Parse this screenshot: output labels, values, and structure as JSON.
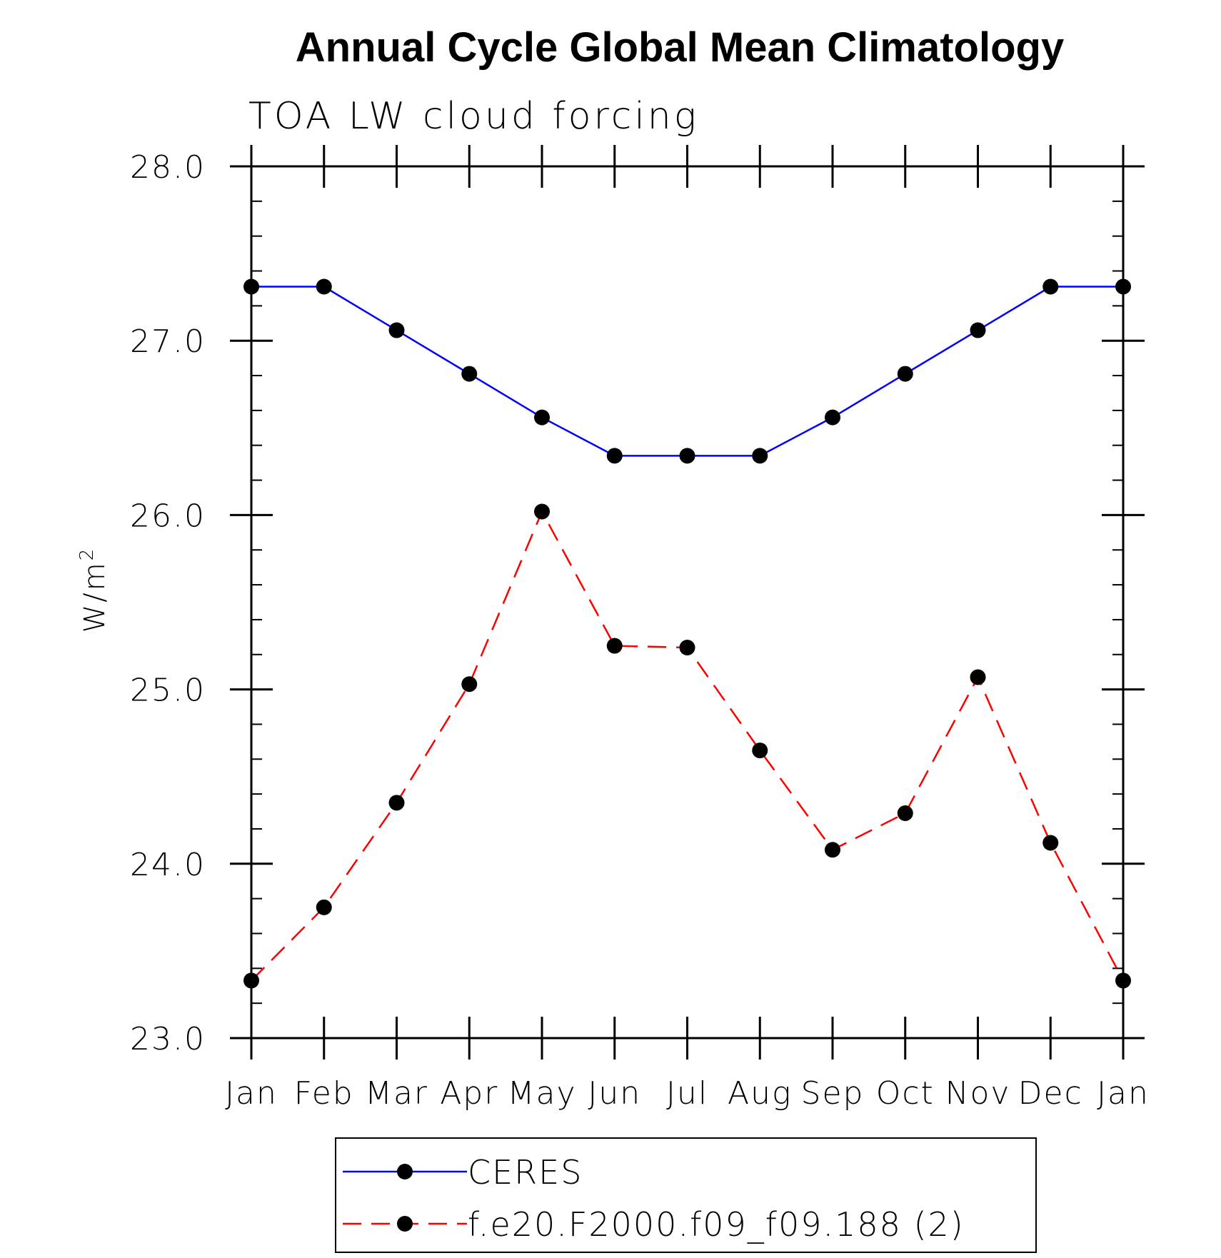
{
  "chart_data": {
    "type": "line",
    "title": "Annual Cycle Global Mean Climatology",
    "subtitle": "TOA LW cloud forcing",
    "ylabel": "W/m",
    "ylabel_superscript": "2",
    "ylim": [
      23.0,
      28.0
    ],
    "y_major_ticks": [
      23.0,
      24.0,
      25.0,
      26.0,
      27.0,
      28.0
    ],
    "y_tick_labels": [
      "23.0",
      "24.0",
      "25.0",
      "26.0",
      "27.0",
      "28.0"
    ],
    "y_minor_step": 0.2,
    "categories": [
      "Jan",
      "Feb",
      "Mar",
      "Apr",
      "May",
      "Jun",
      "Jul",
      "Aug",
      "Sep",
      "Oct",
      "Nov",
      "Dec",
      "Jan"
    ],
    "grid": false,
    "legend_position": "bottom",
    "series": [
      {
        "name": "CERES",
        "color": "#0000ff",
        "line_style": "solid",
        "marker": "filled-circle",
        "values": [
          27.31,
          27.31,
          27.06,
          26.81,
          26.56,
          26.34,
          26.34,
          26.34,
          26.56,
          26.81,
          27.06,
          27.31,
          27.31
        ]
      },
      {
        "name": "f.e20.F2000.f09_f09.188 (2)",
        "color": "#ff0000",
        "line_style": "dashed",
        "marker": "filled-circle",
        "values": [
          23.33,
          23.75,
          24.35,
          25.03,
          26.02,
          25.25,
          25.24,
          24.65,
          24.08,
          24.29,
          25.07,
          24.12,
          23.33
        ]
      }
    ]
  }
}
